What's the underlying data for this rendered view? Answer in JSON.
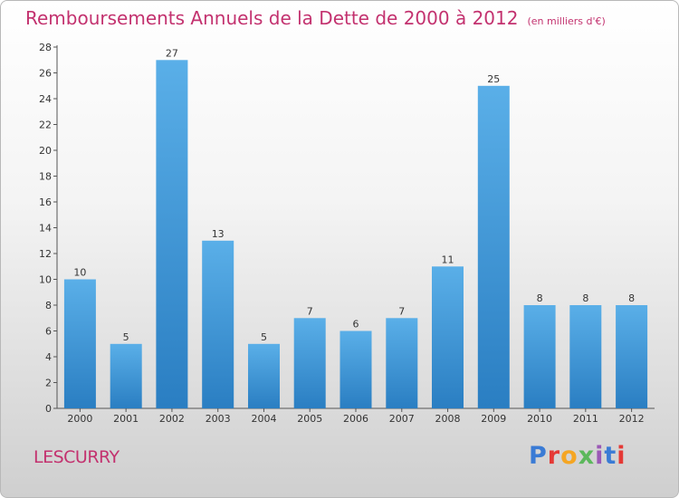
{
  "title": "Remboursements Annuels de la Dette de 2000 à 2012",
  "subtitle": "(en milliers d'€)",
  "commune": "LESCURRY",
  "logo": "Proxiti",
  "logo_colors": [
    "#3a7bd5",
    "#e53935",
    "#f5a623",
    "#5cb85c",
    "#9b59b6",
    "#3a7bd5",
    "#e53935"
  ],
  "colors": {
    "title": "#c3326f",
    "bar_light": "#5aafe8",
    "bar_dark": "#2a7ec2"
  },
  "chart_data": {
    "type": "bar",
    "title": "Remboursements Annuels de la Dette de 2000 à 2012",
    "subtitle": "(en milliers d'€)",
    "categories": [
      "2000",
      "2001",
      "2002",
      "2003",
      "2004",
      "2005",
      "2006",
      "2007",
      "2008",
      "2009",
      "2010",
      "2011",
      "2012"
    ],
    "values": [
      10,
      5,
      27,
      13,
      5,
      7,
      6,
      7,
      11,
      25,
      8,
      8,
      8
    ],
    "ylim": [
      0,
      28
    ],
    "yticks": [
      0,
      2,
      4,
      6,
      8,
      10,
      12,
      14,
      16,
      18,
      20,
      22,
      24,
      26,
      28
    ],
    "grid": false,
    "data_labels": true
  }
}
